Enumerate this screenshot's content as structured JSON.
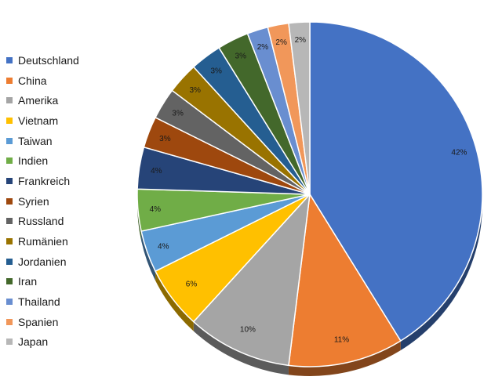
{
  "chart_data": {
    "type": "pie",
    "title": "",
    "legend_position": "left",
    "categories": [
      "Deutschland",
      "China",
      "Amerika",
      "Vietnam",
      "Taiwan",
      "Indien",
      "Frankreich",
      "Syrien",
      "Russland",
      "Rumänien",
      "Jordanien",
      "Iran",
      "Thailand",
      "Spanien",
      "Japan"
    ],
    "values": [
      42,
      11,
      10,
      6,
      4,
      4,
      4,
      3,
      3,
      3,
      3,
      3,
      2,
      2,
      2
    ],
    "data_labels": [
      "42%",
      "11%",
      "10%",
      "6%",
      "4%",
      "4%",
      "4%",
      "3%",
      "3%",
      "3%",
      "3%",
      "3%",
      "2%",
      "2%",
      "2%"
    ],
    "colors": [
      "#4472C4",
      "#ED7D31",
      "#A5A5A5",
      "#FFC000",
      "#5B9BD5",
      "#70AD47",
      "#264478",
      "#9E480E",
      "#636363",
      "#997300",
      "#255E91",
      "#43682B",
      "#698ED0",
      "#F1975A",
      "#B7B7B7"
    ]
  }
}
